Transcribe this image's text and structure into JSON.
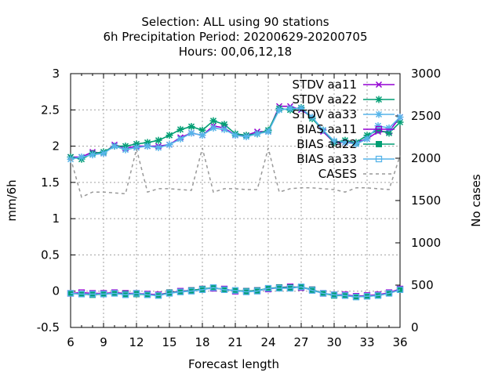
{
  "chart_data": {
    "type": "line",
    "title_lines": [
      "Selection: ALL using    90 stations",
      "6h Precipitation   Period: 20200629-20200705",
      "Hours:  00,06,12,18"
    ],
    "xlabel": "Forecast length",
    "ylabel": "mm/6h",
    "y2label": "No cases",
    "xlim": [
      6,
      36
    ],
    "ylim": [
      -0.5,
      3
    ],
    "y2lim": [
      0,
      3000
    ],
    "xticks": [
      6,
      9,
      12,
      15,
      18,
      21,
      24,
      27,
      30,
      33,
      36
    ],
    "yticks": [
      -0.5,
      0,
      0.5,
      1,
      1.5,
      2,
      2.5,
      3
    ],
    "y2ticks": [
      0,
      500,
      1000,
      1500,
      2000,
      2500,
      3000
    ],
    "grid": true,
    "legend_position": "top-right",
    "x": [
      6,
      7,
      8,
      9,
      10,
      11,
      12,
      13,
      14,
      15,
      16,
      17,
      18,
      19,
      20,
      21,
      22,
      23,
      24,
      25,
      26,
      27,
      28,
      29,
      30,
      31,
      32,
      33,
      34,
      35,
      36
    ],
    "series": [
      {
        "name": "STDV aa11",
        "color": "#9400d3",
        "marker": "x",
        "axis": "y",
        "values": [
          1.85,
          1.85,
          1.92,
          1.9,
          2.02,
          1.97,
          2.0,
          2.0,
          2.0,
          2.02,
          2.12,
          2.18,
          2.15,
          2.28,
          2.25,
          2.15,
          2.15,
          2.2,
          2.2,
          2.55,
          2.55,
          2.5,
          2.4,
          2.2,
          2.05,
          2.05,
          2.05,
          2.1,
          2.2,
          2.2,
          2.4
        ]
      },
      {
        "name": "STDV aa22",
        "color": "#009e73",
        "marker": "x-star",
        "axis": "y",
        "values": [
          1.85,
          1.82,
          1.9,
          1.92,
          2.0,
          2.0,
          2.03,
          2.05,
          2.08,
          2.15,
          2.23,
          2.27,
          2.22,
          2.35,
          2.3,
          2.17,
          2.15,
          2.17,
          2.22,
          2.52,
          2.5,
          2.53,
          2.38,
          2.22,
          2.05,
          2.08,
          2.05,
          2.15,
          2.22,
          2.18,
          2.33
        ]
      },
      {
        "name": "STDV aa33",
        "color": "#56b4e9",
        "marker": "star",
        "axis": "y",
        "values": [
          1.82,
          1.85,
          1.88,
          1.9,
          2.0,
          1.95,
          1.98,
          2.0,
          1.98,
          2.02,
          2.1,
          2.18,
          2.15,
          2.25,
          2.23,
          2.15,
          2.13,
          2.17,
          2.2,
          2.5,
          2.52,
          2.52,
          2.4,
          2.22,
          2.07,
          2.05,
          2.03,
          2.1,
          2.28,
          2.25,
          2.4
        ]
      },
      {
        "name": "BIAS aa11",
        "color": "#9400d3",
        "marker": "square",
        "axis": "y",
        "values": [
          -0.03,
          -0.02,
          -0.03,
          -0.03,
          -0.02,
          -0.03,
          -0.03,
          -0.04,
          -0.05,
          -0.02,
          0.0,
          0.01,
          0.03,
          0.04,
          0.03,
          0.0,
          0.0,
          0.01,
          0.03,
          0.05,
          0.06,
          0.05,
          0.02,
          -0.03,
          -0.05,
          -0.05,
          -0.07,
          -0.06,
          -0.05,
          -0.02,
          0.03
        ]
      },
      {
        "name": "BIAS aa22",
        "color": "#009e73",
        "marker": "square-filled",
        "axis": "y",
        "values": [
          -0.03,
          -0.04,
          -0.05,
          -0.04,
          -0.03,
          -0.04,
          -0.04,
          -0.05,
          -0.06,
          -0.02,
          -0.01,
          0.01,
          0.03,
          0.05,
          0.02,
          0.01,
          0.0,
          0.01,
          0.04,
          0.05,
          0.05,
          0.06,
          0.02,
          -0.03,
          -0.06,
          -0.06,
          -0.08,
          -0.07,
          -0.06,
          -0.03,
          0.02
        ]
      },
      {
        "name": "BIAS aa33",
        "color": "#56b4e9",
        "marker": "square",
        "axis": "y",
        "values": [
          -0.03,
          -0.04,
          -0.04,
          -0.04,
          -0.03,
          -0.05,
          -0.03,
          -0.05,
          -0.06,
          -0.03,
          -0.01,
          0.0,
          0.02,
          0.05,
          0.02,
          0.01,
          -0.01,
          0.0,
          0.04,
          0.04,
          0.04,
          0.06,
          0.01,
          -0.03,
          -0.05,
          -0.06,
          -0.08,
          -0.07,
          -0.06,
          -0.03,
          0.02
        ]
      },
      {
        "name": "CASES",
        "color": "#999999",
        "dashed": true,
        "axis": "y2",
        "values": [
          2000,
          1540,
          1600,
          1600,
          1590,
          1580,
          2110,
          1600,
          1640,
          1640,
          1630,
          1620,
          2120,
          1600,
          1640,
          1640,
          1630,
          1630,
          2120,
          1600,
          1640,
          1650,
          1650,
          1640,
          1630,
          1600,
          1650,
          1650,
          1640,
          1630,
          2030
        ]
      }
    ]
  }
}
